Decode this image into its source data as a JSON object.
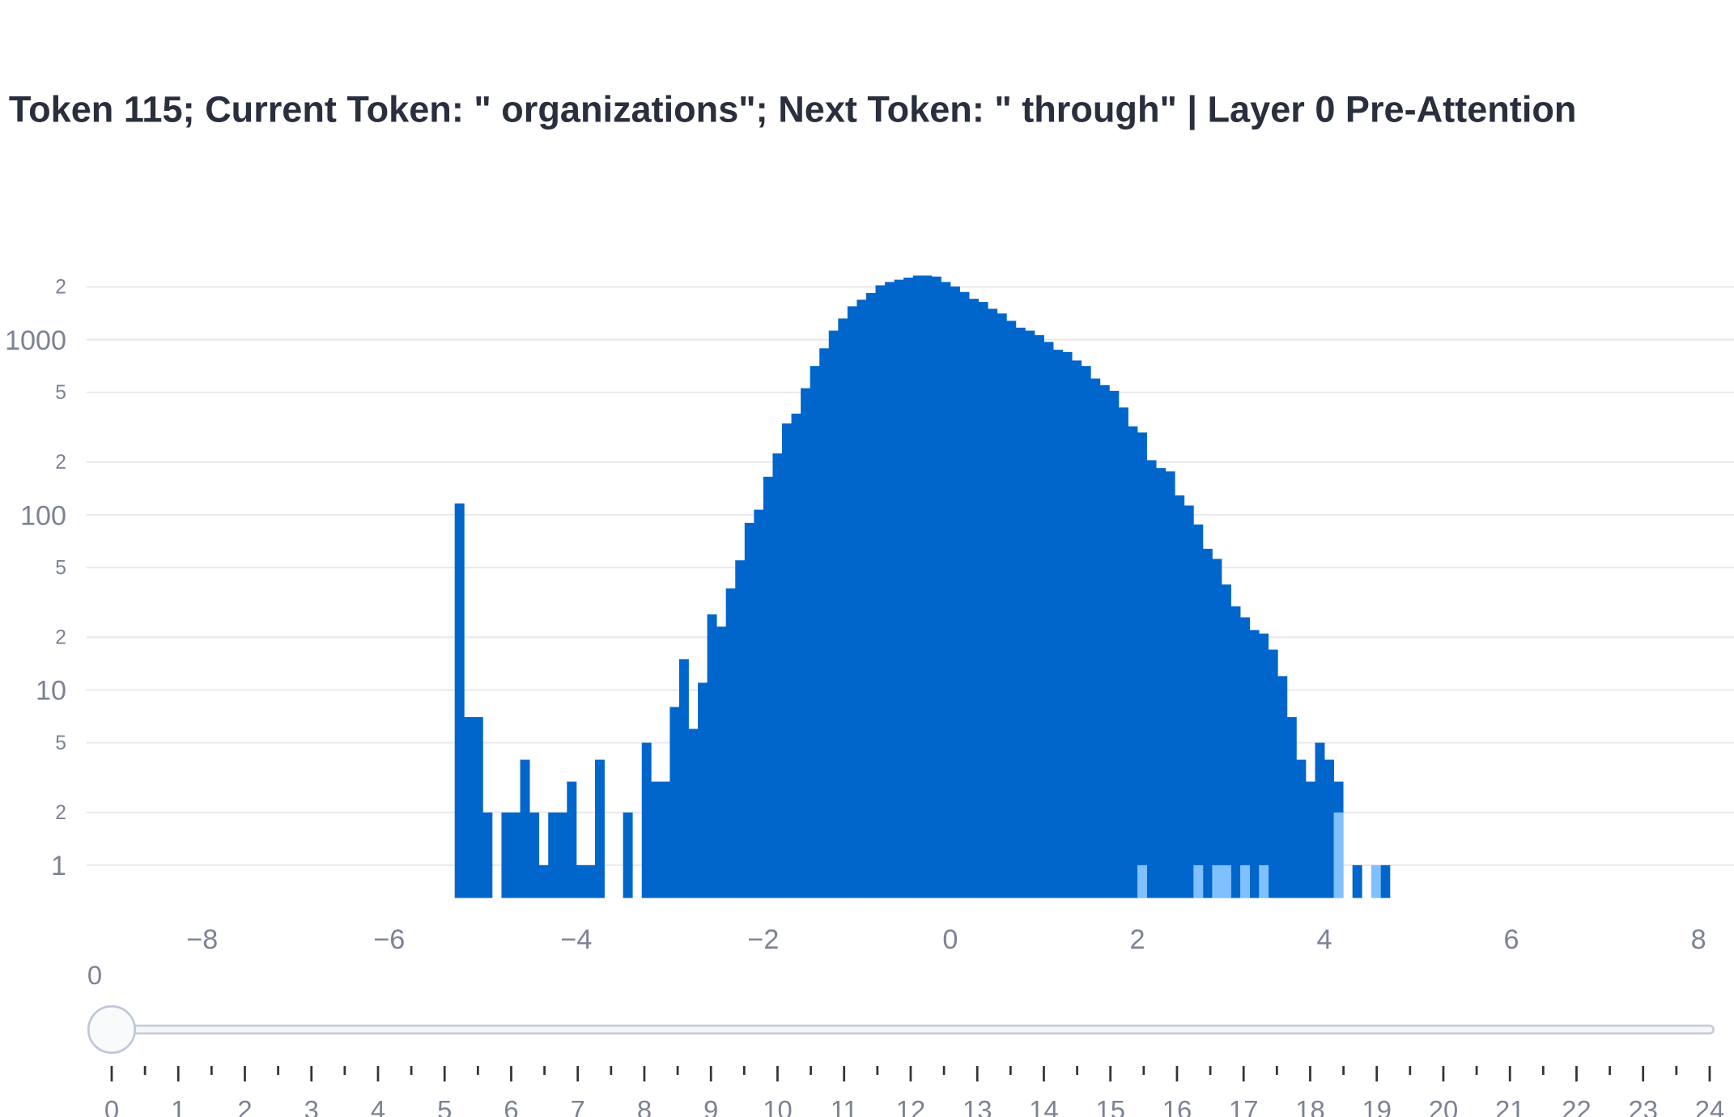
{
  "chart_data": {
    "type": "histogram",
    "title": "Token 115; Current Token: \" organizations\"; Next Token: \" through\" | Layer 0 Pre-Attention",
    "bins": [
      -5.3,
      -5.2,
      -5.1,
      -5.0,
      -4.9,
      -4.8,
      -4.7,
      -4.6,
      -4.5,
      -4.4,
      -4.3,
      -4.2,
      -4.1,
      -4.0,
      -3.9,
      -3.8,
      -3.7,
      -3.6,
      -3.5,
      -3.4,
      -3.3,
      -3.2,
      -3.1,
      -3.0,
      -2.9,
      -2.8,
      -2.7,
      -2.6,
      -2.5,
      -2.4,
      -2.3,
      -2.2,
      -2.1,
      -2.0,
      -1.9,
      -1.8,
      -1.7,
      -1.6,
      -1.5,
      -1.4,
      -1.3,
      -1.2,
      -1.1,
      -1.0,
      -0.9,
      -0.8,
      -0.7,
      -0.6,
      -0.5,
      -0.4,
      -0.3,
      -0.2,
      -0.1,
      0.0,
      0.1,
      0.2,
      0.3,
      0.4,
      0.5,
      0.6,
      0.7,
      0.8,
      0.9,
      1.0,
      1.1,
      1.2,
      1.3,
      1.4,
      1.5,
      1.6,
      1.7,
      1.8,
      1.9,
      2.0,
      2.1,
      2.2,
      2.3,
      2.4,
      2.5,
      2.6,
      2.7,
      2.8,
      2.9,
      3.0,
      3.1,
      3.2,
      3.3,
      3.4,
      3.5,
      3.6,
      3.7,
      3.8,
      3.9,
      4.0,
      4.1,
      4.2,
      4.3,
      4.4,
      4.5,
      4.6,
      4.7
    ],
    "series": [
      {
        "color": "#0066cc",
        "values": [
          116,
          7,
          7,
          2,
          0,
          2,
          2,
          4,
          2,
          1,
          2,
          2,
          3,
          1,
          1,
          4,
          0,
          0,
          2,
          0,
          5,
          3,
          3,
          8,
          15,
          6,
          11,
          27,
          23,
          38,
          55,
          90,
          107,
          165,
          224,
          332,
          378,
          528,
          707,
          892,
          1125,
          1320,
          1550,
          1690,
          1845,
          2042,
          2133,
          2197,
          2260,
          2320,
          2320,
          2290,
          2133,
          2010,
          1870,
          1710,
          1640,
          1500,
          1410,
          1280,
          1170,
          1125,
          1060,
          970,
          875,
          850,
          760,
          707,
          600,
          550,
          510,
          410,
          320,
          295,
          205,
          185,
          177,
          129,
          113,
          88,
          64,
          56,
          40,
          30,
          26,
          22,
          21,
          17,
          12,
          7,
          4,
          3,
          5,
          4,
          3,
          0,
          1,
          0,
          0,
          1
        ]
      },
      {
        "color": "#80c0ff",
        "values": [
          0,
          0,
          0,
          0,
          0,
          0,
          0,
          0,
          0,
          0,
          0,
          0,
          0,
          0,
          0,
          0,
          0,
          0,
          0,
          0,
          0,
          0,
          0,
          0,
          0,
          0,
          0,
          0,
          0,
          0,
          0,
          0,
          0,
          0,
          0,
          0,
          0,
          0,
          0,
          0,
          0,
          0,
          0,
          0,
          0,
          0,
          0,
          0,
          0,
          0,
          0,
          0,
          0,
          0,
          0,
          0,
          0,
          0,
          0,
          0,
          0,
          0,
          0,
          0,
          0,
          0,
          0,
          0,
          0,
          0,
          0,
          0,
          0,
          1,
          0,
          0,
          0,
          0,
          0,
          1,
          0,
          1,
          1,
          0,
          1,
          0,
          1,
          0,
          0,
          0,
          0,
          0,
          0,
          0,
          2,
          0,
          0,
          0,
          1,
          0
        ]
      }
    ],
    "barmode": "overlay",
    "xlim": [
      -9.24,
      8.38
    ],
    "xticks": [
      {
        "value": -8,
        "label": "−8"
      },
      {
        "value": -6,
        "label": "−6"
      },
      {
        "value": -4,
        "label": "−4"
      },
      {
        "value": -2,
        "label": "−2"
      },
      0,
      2,
      4,
      6,
      8
    ],
    "ylim": [
      0.65,
      2500
    ],
    "log_y": true,
    "grid": true,
    "yticks": [
      {
        "value": 2000,
        "label": "2"
      },
      1000,
      {
        "value": 500,
        "label": "5"
      },
      {
        "value": 200,
        "label": "2"
      },
      100,
      {
        "value": 50,
        "label": "5"
      },
      {
        "value": 20,
        "label": "2"
      },
      10,
      5,
      2,
      1
    ]
  },
  "slider": {
    "value": 0,
    "steps": [
      0,
      1,
      2,
      3,
      4,
      5,
      6,
      7,
      8,
      9,
      10,
      11,
      12,
      13,
      14,
      15,
      16,
      17,
      18,
      19,
      20,
      21,
      22,
      23,
      24
    ]
  }
}
